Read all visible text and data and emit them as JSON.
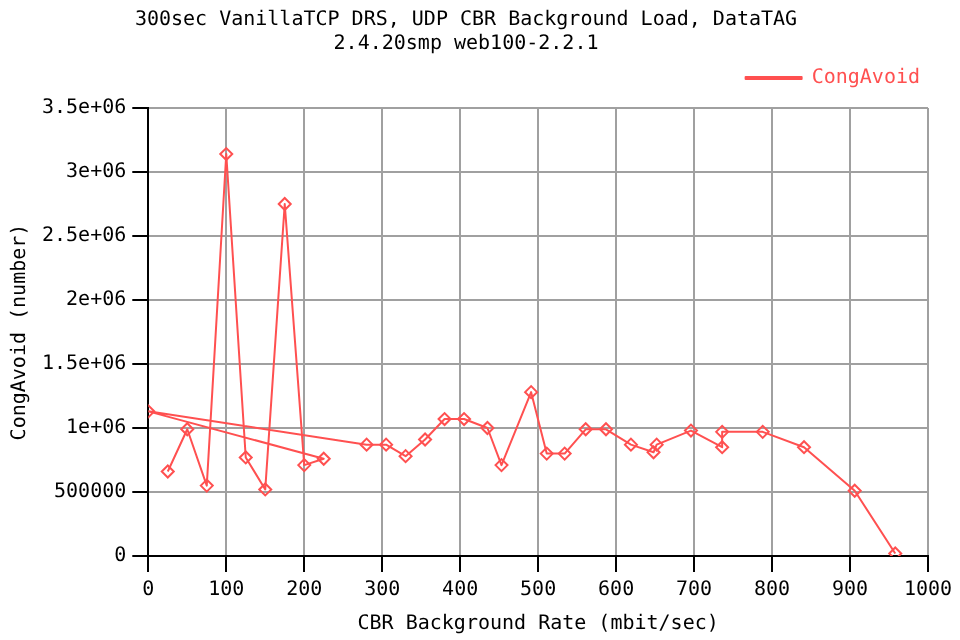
{
  "chart_data": {
    "type": "line",
    "title": "300sec VanillaTCP DRS, UDP CBR Background Load, DataTAG\n2.4.20smp web100-2.2.1",
    "xlabel": "CBR Background Rate (mbit/sec)",
    "ylabel": "CongAvoid (number)",
    "series": [
      {
        "name": "CongAvoid",
        "color": "#ff5050",
        "x": [
          25,
          50,
          75,
          100,
          125,
          150,
          175,
          200,
          225,
          0,
          280,
          305,
          330,
          355,
          380,
          405,
          435,
          453,
          491,
          511,
          534,
          561,
          587,
          619,
          648,
          652,
          696,
          736,
          736,
          788,
          841,
          906,
          958
        ],
        "values": [
          660000,
          990000,
          550000,
          3140000,
          770000,
          520000,
          2750000,
          710000,
          760000,
          1130000,
          870000,
          870000,
          780000,
          910000,
          1070000,
          1070000,
          1000000,
          710000,
          1280000,
          800000,
          800000,
          990000,
          990000,
          870000,
          810000,
          870000,
          980000,
          850000,
          970000,
          970000,
          850000,
          510000,
          20000
        ]
      }
    ],
    "xlim": [
      0,
      1000
    ],
    "xticks": [
      0,
      100,
      200,
      300,
      400,
      500,
      600,
      700,
      800,
      900,
      1000
    ],
    "ylim": [
      0,
      3500000
    ],
    "yticks": [
      0,
      500000,
      {
        "value": 1000000,
        "label": "1e+06"
      },
      {
        "value": 1500000,
        "label": "1.5e+06"
      },
      {
        "value": 2000000,
        "label": "2e+06"
      },
      {
        "value": 2500000,
        "label": "2.5e+06"
      },
      {
        "value": 3000000,
        "label": "3e+06"
      },
      {
        "value": 3500000,
        "label": "3.5e+06"
      }
    ],
    "grid": true,
    "legend": "top right",
    "marker": "diamond",
    "line_style": "solid"
  }
}
